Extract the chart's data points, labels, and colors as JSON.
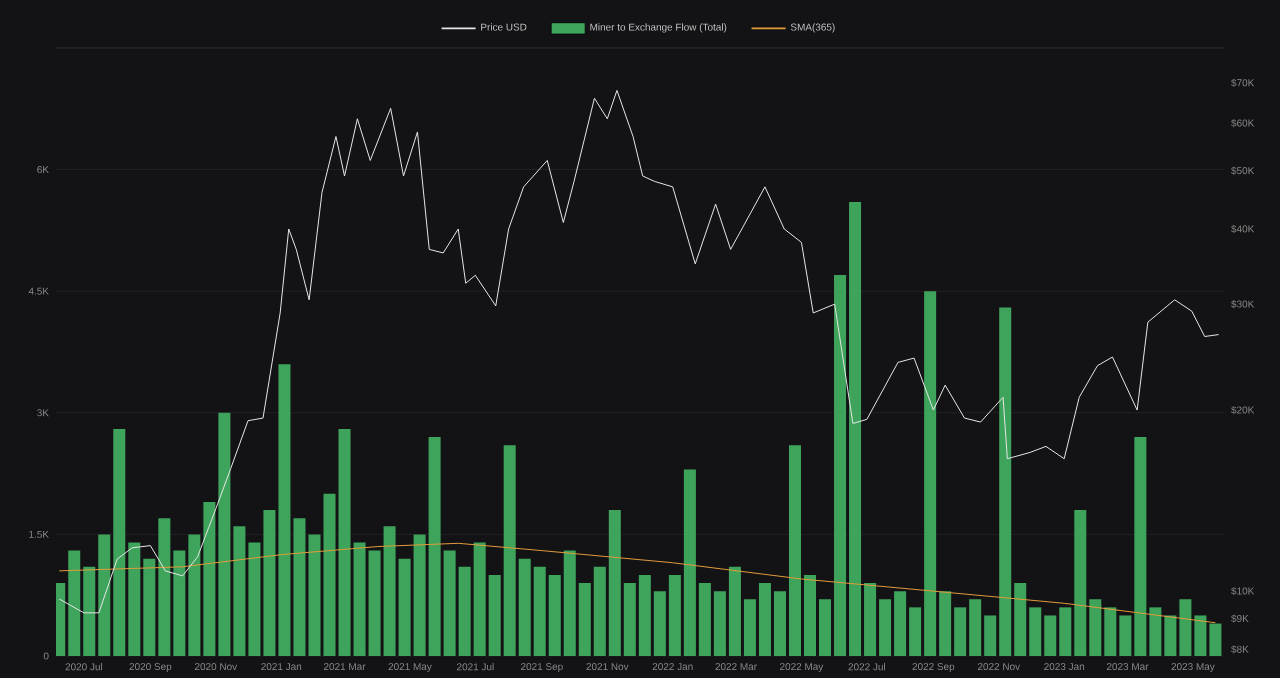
{
  "chart_data": {
    "type": "line",
    "legend": "top",
    "grid": "y",
    "log": "y2",
    "xlim": [
      "2020-06-05",
      "2023-05-30"
    ],
    "xticks": [
      {
        "value": "2020-07-01",
        "label": "2020 Jul"
      },
      {
        "value": "2020-09-01",
        "label": "2020 Sep"
      },
      {
        "value": "2020-11-01",
        "label": "2020 Nov"
      },
      {
        "value": "2021-01-01",
        "label": "2021 Jan"
      },
      {
        "value": "2021-03-01",
        "label": "2021 Mar"
      },
      {
        "value": "2021-05-01",
        "label": "2021 May"
      },
      {
        "value": "2021-07-01",
        "label": "2021 Jul"
      },
      {
        "value": "2021-09-01",
        "label": "2021 Sep"
      },
      {
        "value": "2021-11-01",
        "label": "2021 Nov"
      },
      {
        "value": "2022-01-01",
        "label": "2022 Jan"
      },
      {
        "value": "2022-03-01",
        "label": "2022 Mar"
      },
      {
        "value": "2022-05-01",
        "label": "2022 May"
      },
      {
        "value": "2022-07-01",
        "label": "2022 Jul"
      },
      {
        "value": "2022-09-01",
        "label": "2022 Sep"
      },
      {
        "value": "2022-11-01",
        "label": "2022 Nov"
      },
      {
        "value": "2023-01-01",
        "label": "2023 Jan"
      },
      {
        "value": "2023-03-01",
        "label": "2023 Mar"
      },
      {
        "value": "2023-05-01",
        "label": "2023 May"
      }
    ],
    "ylim": [
      0,
      7500
    ],
    "yticks": [
      0,
      {
        "value": 1500,
        "label": "1.5K"
      },
      {
        "value": 3000,
        "label": "3K"
      },
      {
        "value": 4500,
        "label": "4.5K"
      },
      {
        "value": 6000,
        "label": "6K"
      }
    ],
    "y2lim": [
      7800,
      80000
    ],
    "y2ticks": [
      {
        "value": 8000,
        "label": "$8K"
      },
      {
        "value": 9000,
        "label": "$9K"
      },
      {
        "value": 10000,
        "label": "$10K"
      },
      {
        "value": 20000,
        "label": "$20K"
      },
      {
        "value": 30000,
        "label": "$30K"
      },
      {
        "value": 40000,
        "label": "$40K"
      },
      {
        "value": 50000,
        "label": "$50K"
      },
      {
        "value": 60000,
        "label": "$60K"
      },
      {
        "value": 70000,
        "label": "$70K"
      }
    ],
    "series": [
      {
        "name": "Price USD",
        "axis": "y2",
        "color": "#e6e6e6",
        "x": [
          "2020-06-08",
          "2020-07-01",
          "2020-07-15",
          "2020-08-01",
          "2020-08-15",
          "2020-09-01",
          "2020-09-15",
          "2020-10-01",
          "2020-10-15",
          "2020-11-01",
          "2020-11-15",
          "2020-12-01",
          "2020-12-15",
          "2020-12-31",
          "2021-01-08",
          "2021-01-15",
          "2021-01-27",
          "2021-02-08",
          "2021-02-21",
          "2021-03-01",
          "2021-03-13",
          "2021-03-25",
          "2021-04-13",
          "2021-04-25",
          "2021-05-08",
          "2021-05-19",
          "2021-06-01",
          "2021-06-15",
          "2021-06-22",
          "2021-07-01",
          "2021-07-20",
          "2021-08-01",
          "2021-08-15",
          "2021-09-06",
          "2021-09-21",
          "2021-10-01",
          "2021-10-20",
          "2021-11-01",
          "2021-11-10",
          "2021-11-25",
          "2021-12-04",
          "2021-12-15",
          "2022-01-01",
          "2022-01-22",
          "2022-02-10",
          "2022-02-24",
          "2022-03-28",
          "2022-04-15",
          "2022-05-01",
          "2022-05-12",
          "2022-06-01",
          "2022-06-18",
          "2022-07-01",
          "2022-07-30",
          "2022-08-14",
          "2022-09-01",
          "2022-09-12",
          "2022-09-30",
          "2022-10-15",
          "2022-11-05",
          "2022-11-09",
          "2022-11-30",
          "2022-12-15",
          "2023-01-01",
          "2023-01-15",
          "2023-02-01",
          "2023-02-15",
          "2023-03-10",
          "2023-03-20",
          "2023-04-14",
          "2023-04-30",
          "2023-05-12",
          "2023-05-25"
        ],
        "values": [
          9700,
          9200,
          9200,
          11300,
          11800,
          11900,
          10800,
          10600,
          11400,
          13700,
          16000,
          19200,
          19400,
          29000,
          40000,
          37000,
          30500,
          46000,
          57000,
          49000,
          61000,
          52000,
          63500,
          49000,
          58000,
          37000,
          36500,
          40000,
          32500,
          33500,
          29800,
          40000,
          47000,
          52000,
          41000,
          48000,
          66000,
          61000,
          68000,
          57000,
          49000,
          48000,
          47000,
          35000,
          44000,
          37000,
          47000,
          40000,
          38000,
          29000,
          30000,
          19000,
          19300,
          24000,
          24400,
          20000,
          22000,
          19400,
          19100,
          21000,
          16600,
          17000,
          17400,
          16600,
          21000,
          23700,
          24500,
          20000,
          28000,
          30500,
          29200,
          26500,
          26700
        ]
      },
      {
        "name": "Miner to Exchange Flow (Total)",
        "type": "bar",
        "color": "#3fa45b",
        "x": [
          "2020-06-08",
          "2020-06-22",
          "2020-07-06",
          "2020-07-20",
          "2020-08-03",
          "2020-08-17",
          "2020-08-31",
          "2020-09-14",
          "2020-09-28",
          "2020-10-12",
          "2020-10-26",
          "2020-11-09",
          "2020-11-23",
          "2020-12-07",
          "2020-12-21",
          "2021-01-04",
          "2021-01-18",
          "2021-02-01",
          "2021-02-15",
          "2021-03-01",
          "2021-03-15",
          "2021-03-29",
          "2021-04-12",
          "2021-04-26",
          "2021-05-10",
          "2021-05-24",
          "2021-06-07",
          "2021-06-21",
          "2021-07-05",
          "2021-07-19",
          "2021-08-02",
          "2021-08-16",
          "2021-08-30",
          "2021-09-13",
          "2021-09-27",
          "2021-10-11",
          "2021-10-25",
          "2021-11-08",
          "2021-11-22",
          "2021-12-06",
          "2021-12-20",
          "2022-01-03",
          "2022-01-17",
          "2022-01-31",
          "2022-02-14",
          "2022-02-28",
          "2022-03-14",
          "2022-03-28",
          "2022-04-11",
          "2022-04-25",
          "2022-05-09",
          "2022-05-23",
          "2022-06-06",
          "2022-06-20",
          "2022-07-04",
          "2022-07-18",
          "2022-08-01",
          "2022-08-15",
          "2022-08-29",
          "2022-09-12",
          "2022-09-26",
          "2022-10-10",
          "2022-10-24",
          "2022-11-07",
          "2022-11-21",
          "2022-12-05",
          "2022-12-19",
          "2023-01-02",
          "2023-01-16",
          "2023-01-30",
          "2023-02-13",
          "2023-02-27",
          "2023-03-13",
          "2023-03-27",
          "2023-04-10",
          "2023-04-24",
          "2023-05-08",
          "2023-05-22"
        ],
        "values": [
          900,
          1300,
          1100,
          1500,
          2800,
          1400,
          1200,
          1700,
          1300,
          1500,
          1900,
          3000,
          1600,
          1400,
          1800,
          3600,
          1700,
          1500,
          2000,
          2800,
          1400,
          1300,
          1600,
          1200,
          1500,
          2700,
          1300,
          1100,
          1400,
          1000,
          2600,
          1200,
          1100,
          1000,
          1300,
          900,
          1100,
          1800,
          900,
          1000,
          800,
          1000,
          2300,
          900,
          800,
          1100,
          700,
          900,
          800,
          2600,
          1000,
          700,
          4700,
          5600,
          900,
          700,
          800,
          600,
          4500,
          800,
          600,
          700,
          500,
          4300,
          900,
          600,
          500,
          600,
          1800,
          700,
          600,
          500,
          2700,
          600,
          500,
          700,
          500,
          400
        ]
      },
      {
        "name": "SMA(365)",
        "color": "#e39b3b",
        "x": [
          "2020-06-08",
          "2020-10-01",
          "2021-01-01",
          "2021-04-01",
          "2021-06-15",
          "2021-09-01",
          "2022-01-01",
          "2022-05-01",
          "2022-09-01",
          "2023-01-01",
          "2023-05-22"
        ],
        "values": [
          1050,
          1100,
          1250,
          1350,
          1390,
          1300,
          1150,
          950,
          800,
          650,
          410
        ]
      }
    ]
  }
}
